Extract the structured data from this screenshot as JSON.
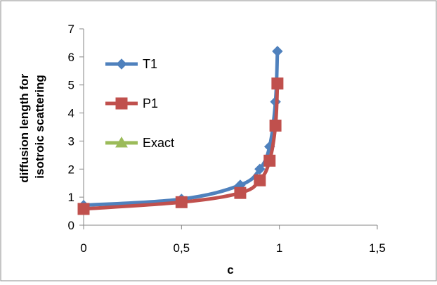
{
  "chart_data": {
    "type": "line",
    "title": "",
    "xlabel": "c",
    "ylabel_lines": [
      "diffusion length for",
      "isotroic scattering"
    ],
    "xlim": [
      0,
      1.5
    ],
    "ylim": [
      0,
      7
    ],
    "x_ticks": [
      0,
      0.5,
      1,
      1.5
    ],
    "x_tick_labels": [
      "0",
      "0,5",
      "1",
      "1,5"
    ],
    "y_ticks": [
      0,
      1,
      2,
      3,
      4,
      5,
      6,
      7
    ],
    "y_tick_labels": [
      "0",
      "1",
      "2",
      "3",
      "4",
      "5",
      "6",
      "7"
    ],
    "grid": false,
    "legend_position": "left",
    "series": [
      {
        "name": "T1",
        "color": "#4f81bd",
        "marker": "diamond",
        "x": [
          0,
          0.5,
          0.8,
          0.9,
          0.95,
          0.98,
          0.99
        ],
        "y": [
          0.71,
          0.93,
          1.43,
          2.0,
          2.8,
          4.4,
          6.2
        ]
      },
      {
        "name": "P1",
        "color": "#c0504d",
        "marker": "square",
        "x": [
          0,
          0.5,
          0.8,
          0.9,
          0.95,
          0.98,
          0.99
        ],
        "y": [
          0.58,
          0.82,
          1.15,
          1.6,
          2.3,
          3.55,
          5.05
        ]
      },
      {
        "name": "Exact",
        "color": "#9bbb59",
        "marker": "triangle",
        "x": [],
        "y": []
      }
    ]
  }
}
